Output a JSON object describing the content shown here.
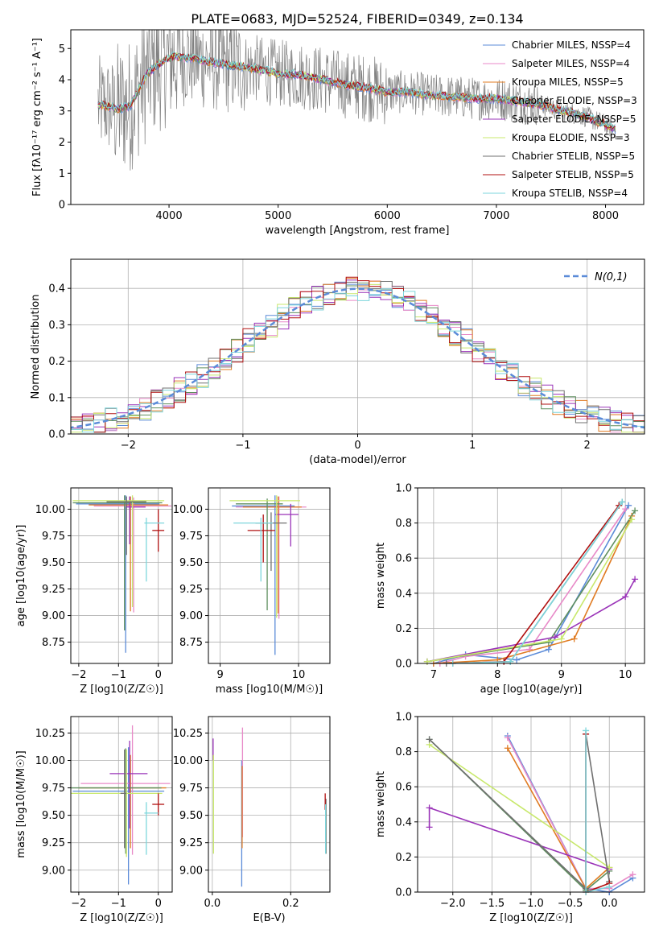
{
  "figure": {
    "title": "PLATE=0683, MJD=52524, FIBERID=0349, z=0.134"
  },
  "colors": {
    "series": [
      "#5b8bd8",
      "#e88ac8",
      "#e07b22",
      "#5f8f5f",
      "#9a33b8",
      "#c8e86c",
      "#707070",
      "#b01010",
      "#7dd6dc"
    ],
    "data_gray": "#808080",
    "normal_curve": "#5b8bd8",
    "grid": "#b0b0b0"
  },
  "chart_data": [
    {
      "id": "spectrum",
      "type": "line",
      "title": "PLATE=0683, MJD=52524, FIBERID=0349, z=0.134",
      "xlabel": "wavelength [Angstrom, rest frame]",
      "ylabel": "Flux [fλ10⁻¹⁷ erg cm⁻² s⁻¹ A⁻¹]",
      "xlim": [
        3100,
        8350
      ],
      "ylim": [
        0,
        5.6
      ],
      "xticks": [
        4000,
        5000,
        6000,
        7000,
        8000
      ],
      "yticks": [
        0,
        1,
        2,
        3,
        4,
        5
      ],
      "grid": false,
      "legend_position": "top-right",
      "legend": [
        "Chabrier MILES, NSSP=4",
        "Salpeter MILES, NSSP=4",
        "Kroupa MILES, NSSP=5",
        "Chabrier ELODIE, NSSP=3",
        "Salpeter ELODIE, NSSP=5",
        "Kroupa ELODIE, NSSP=3",
        "Chabrier STELIB, NSSP=5",
        "Salpeter STELIB, NSSP=5",
        "Kroupa STELIB, NSSP=4"
      ],
      "model_continuum": {
        "x": [
          3350,
          3450,
          3550,
          3650,
          3800,
          3950,
          4050,
          4200,
          4400,
          4600,
          4800,
          5000,
          5200,
          5400,
          5600,
          5800,
          6000,
          6200,
          6400,
          6600,
          6800,
          7000,
          7200,
          7400,
          7600,
          7800,
          8000,
          8100
        ],
        "y": [
          3.2,
          3.15,
          3.05,
          3.2,
          4.2,
          4.6,
          4.75,
          4.7,
          4.55,
          4.45,
          4.35,
          4.2,
          4.15,
          4.0,
          3.85,
          3.75,
          3.6,
          3.6,
          3.5,
          3.45,
          3.4,
          3.4,
          3.3,
          3.2,
          3.0,
          2.85,
          2.55,
          2.4
        ]
      }
    },
    {
      "id": "residuals",
      "type": "step",
      "xlabel": "(data-model)/error",
      "ylabel": "Normed distribution",
      "xlim": [
        -2.5,
        2.5
      ],
      "ylim": [
        0,
        0.48
      ],
      "xticks": [
        -2,
        -1,
        0,
        1,
        2
      ],
      "yticks": [
        0.0,
        0.1,
        0.2,
        0.3,
        0.4
      ],
      "grid": true,
      "legend_position": "top-right",
      "legend": [
        "N(0,1)"
      ],
      "bin_width": 0.1,
      "normal": {
        "mean": 0,
        "sigma": 1
      }
    },
    {
      "id": "age_vs_Z",
      "type": "errorbar",
      "xlabel": "Z [log10(Z/Z☉)]",
      "ylabel": "age  [log10(age/yr)]",
      "xlim": [
        -2.2,
        0.35
      ],
      "ylim": [
        8.55,
        10.2
      ],
      "xticks": [
        -2,
        -1,
        0
      ],
      "yticks": [
        8.75,
        9.0,
        9.25,
        9.5,
        9.75,
        10.0
      ],
      "grid": true,
      "points": [
        {
          "x": -0.82,
          "y": 10.05,
          "xerr": [
            1.25,
            0.85
          ],
          "yerr": [
            1.4,
            0.08
          ]
        },
        {
          "x": -0.62,
          "y": 10.03,
          "xerr": [
            1.0,
            0.95
          ],
          "yerr": [
            1.0,
            0.08
          ]
        },
        {
          "x": -0.7,
          "y": 10.04,
          "xerr": [
            1.05,
            0.95
          ],
          "yerr": [
            1.0,
            0.08
          ]
        },
        {
          "x": -0.85,
          "y": 10.06,
          "xerr": [
            1.3,
            0.95
          ],
          "yerr": [
            1.2,
            0.07
          ]
        },
        {
          "x": -0.72,
          "y": 10.02,
          "xerr": [
            0.1,
            0.4
          ],
          "yerr": [
            0.35,
            0.1
          ]
        },
        {
          "x": -0.65,
          "y": 10.08,
          "xerr": [
            1.5,
            0.8
          ],
          "yerr": [
            1.0,
            0.05
          ]
        },
        {
          "x": -0.8,
          "y": 10.07,
          "xerr": [
            0.5,
            0.5
          ],
          "yerr": [
            0.5,
            0.05
          ]
        },
        {
          "x": 0.0,
          "y": 9.8,
          "xerr": [
            0.15,
            0.15
          ],
          "yerr": [
            0.2,
            0.2
          ]
        },
        {
          "x": -0.3,
          "y": 9.87,
          "xerr": [
            0.05,
            0.45
          ],
          "yerr": [
            0.55,
            0.05
          ]
        }
      ]
    },
    {
      "id": "age_vs_mass",
      "type": "errorbar",
      "xlabel": "mass [log10(M/M☉)]",
      "ylabel": "",
      "xlim": [
        8.85,
        10.4
      ],
      "ylim": [
        8.55,
        10.2
      ],
      "xticks": [
        9,
        10
      ],
      "yticks": [
        8.75,
        9.0,
        9.25,
        9.5,
        9.75,
        10.0
      ],
      "grid": true,
      "points": [
        {
          "x": 9.7,
          "y": 10.03,
          "xerr": [
            0.55,
            0.25
          ],
          "yerr": [
            1.4,
            0.1
          ]
        },
        {
          "x": 9.75,
          "y": 10.02,
          "xerr": [
            0.55,
            0.35
          ],
          "yerr": [
            1.05,
            0.1
          ]
        },
        {
          "x": 9.74,
          "y": 10.02,
          "xerr": [
            0.45,
            0.3
          ],
          "yerr": [
            1.0,
            0.1
          ]
        },
        {
          "x": 9.6,
          "y": 10.05,
          "xerr": [
            0.4,
            0.2
          ],
          "yerr": [
            1.0,
            0.05
          ]
        },
        {
          "x": 9.9,
          "y": 9.95,
          "xerr": [
            0.2,
            0.1
          ],
          "yerr": [
            0.3,
            0.1
          ]
        },
        {
          "x": 9.72,
          "y": 10.08,
          "xerr": [
            0.6,
            0.3
          ],
          "yerr": [
            1.1,
            0.05
          ]
        },
        {
          "x": 9.65,
          "y": 9.87,
          "xerr": [
            0.2,
            0.2
          ],
          "yerr": [
            0.45,
            0.1
          ]
        },
        {
          "x": 9.55,
          "y": 9.8,
          "xerr": [
            0.2,
            0.15
          ],
          "yerr": [
            0.3,
            0.15
          ]
        },
        {
          "x": 9.52,
          "y": 9.87,
          "xerr": [
            0.35,
            0.15
          ],
          "yerr": [
            0.55,
            0.05
          ]
        }
      ]
    },
    {
      "id": "weight_vs_age",
      "type": "line",
      "xlabel": "age  [log10(age/yr)]",
      "ylabel": "mass weight",
      "xlim": [
        6.75,
        10.3
      ],
      "ylim": [
        0,
        1.0
      ],
      "xticks": [
        7,
        8,
        9,
        10
      ],
      "yticks": [
        0.0,
        0.2,
        0.4,
        0.6,
        0.8,
        1.0
      ],
      "grid": true,
      "series": [
        {
          "x": [
            7.0,
            7.5,
            8.3,
            8.8,
            10.05
          ],
          "y": [
            0.0,
            0.05,
            0.02,
            0.08,
            0.9
          ]
        },
        {
          "x": [
            7.1,
            7.5,
            8.5,
            10.0
          ],
          "y": [
            0.0,
            0.04,
            0.08,
            0.88
          ]
        },
        {
          "x": [
            7.0,
            8.0,
            9.2,
            10.1
          ],
          "y": [
            0.0,
            0.02,
            0.14,
            0.84
          ]
        },
        {
          "x": [
            6.9,
            8.8,
            10.15
          ],
          "y": [
            0.01,
            0.12,
            0.87
          ]
        },
        {
          "x": [
            6.9,
            8.9,
            10.0,
            10.15
          ],
          "y": [
            0.01,
            0.15,
            0.38,
            0.48
          ]
        },
        {
          "x": [
            6.9,
            9.0,
            10.1
          ],
          "y": [
            0.01,
            0.14,
            0.82
          ]
        },
        {
          "x": [
            7.2,
            8.2,
            9.95
          ],
          "y": [
            0.0,
            0.01,
            0.92
          ]
        },
        {
          "x": [
            7.3,
            8.1,
            9.9
          ],
          "y": [
            0.0,
            0.01,
            0.9
          ]
        },
        {
          "x": [
            7.3,
            8.2,
            9.95
          ],
          "y": [
            0.0,
            0.01,
            0.92
          ]
        }
      ]
    },
    {
      "id": "mass_vs_Z",
      "type": "errorbar",
      "xlabel": "Z [log10(Z/Z☉)]",
      "ylabel": "mass [log10(M/M☉)]",
      "xlim": [
        -2.2,
        0.35
      ],
      "ylim": [
        8.8,
        10.4
      ],
      "xticks": [
        -2,
        -1,
        0
      ],
      "yticks": [
        9.0,
        9.25,
        9.5,
        9.75,
        10.0,
        10.25
      ],
      "grid": true,
      "points": [
        {
          "x": -0.75,
          "y": 9.72,
          "xerr": [
            1.4,
            0.9
          ],
          "yerr": [
            0.85,
            0.4
          ]
        },
        {
          "x": -0.65,
          "y": 9.79,
          "xerr": [
            1.3,
            0.95
          ],
          "yerr": [
            0.65,
            0.53
          ]
        },
        {
          "x": -0.7,
          "y": 9.75,
          "xerr": [
            1.3,
            0.9
          ],
          "yerr": [
            0.55,
            0.3
          ]
        },
        {
          "x": -0.82,
          "y": 9.75,
          "xerr": [
            1.4,
            0.9
          ],
          "yerr": [
            0.6,
            0.36
          ]
        },
        {
          "x": -0.72,
          "y": 9.88,
          "xerr": [
            0.5,
            0.45
          ],
          "yerr": [
            0.5,
            0.3
          ]
        },
        {
          "x": -0.8,
          "y": 9.7,
          "xerr": [
            1.5,
            0.9
          ],
          "yerr": [
            0.58,
            0.4
          ]
        },
        {
          "x": -0.85,
          "y": 9.7,
          "xerr": [
            0.1,
            0.05
          ],
          "yerr": [
            0.5,
            0.4
          ]
        },
        {
          "x": 0.0,
          "y": 9.6,
          "xerr": [
            0.15,
            0.15
          ],
          "yerr": [
            0.1,
            0.1
          ]
        },
        {
          "x": -0.3,
          "y": 9.52,
          "xerr": [
            0.05,
            0.3
          ],
          "yerr": [
            0.38,
            0.1
          ]
        }
      ]
    },
    {
      "id": "mass_vs_EBV",
      "type": "errorbar",
      "xlabel": "E(B-V)",
      "ylabel": "",
      "xlim": [
        -0.01,
        0.3
      ],
      "ylim": [
        8.8,
        10.4
      ],
      "xticks": [
        0.0,
        0.2
      ],
      "yticks": [
        9.0,
        9.25,
        9.5,
        9.75,
        10.0,
        10.25
      ],
      "grid": true,
      "points": [
        {
          "x": 0.075,
          "y": 9.5,
          "xerr": [
            0,
            0
          ],
          "yerr": [
            0.65,
            0.5
          ]
        },
        {
          "x": 0.077,
          "y": 9.8,
          "xerr": [
            0,
            0
          ],
          "yerr": [
            0.5,
            0.5
          ]
        },
        {
          "x": 0.076,
          "y": 9.6,
          "xerr": [
            0,
            0
          ],
          "yerr": [
            0.4,
            0.35
          ]
        },
        {
          "x": 0.29,
          "y": 9.4,
          "xerr": [
            0,
            0
          ],
          "yerr": [
            0.25,
            0.2
          ]
        },
        {
          "x": 0.002,
          "y": 10.1,
          "xerr": [
            0,
            0
          ],
          "yerr": [
            0.1,
            0.1
          ]
        },
        {
          "x": 0.003,
          "y": 9.6,
          "xerr": [
            0,
            0
          ],
          "yerr": [
            0.45,
            0.45
          ]
        },
        {
          "x": 0.29,
          "y": 9.35,
          "xerr": [
            0,
            0
          ],
          "yerr": [
            0.2,
            0.3
          ]
        },
        {
          "x": 0.288,
          "y": 9.6,
          "xerr": [
            0,
            0
          ],
          "yerr": [
            0.05,
            0.1
          ]
        },
        {
          "x": 0.289,
          "y": 9.45,
          "xerr": [
            0,
            0
          ],
          "yerr": [
            0.3,
            0.15
          ]
        }
      ]
    },
    {
      "id": "weight_vs_Z",
      "type": "line",
      "xlabel": "Z [log10(Z/Z☉)]",
      "ylabel": "mass weight",
      "xlim": [
        -2.45,
        0.45
      ],
      "ylim": [
        0,
        1.0
      ],
      "xticks": [
        -2.0,
        -1.5,
        -1.0,
        -0.5,
        0.0
      ],
      "yticks": [
        0.0,
        0.2,
        0.4,
        0.6,
        0.8,
        1.0
      ],
      "grid": true,
      "series": [
        {
          "x": [
            -1.3,
            -0.3,
            0.0,
            0.3
          ],
          "y": [
            0.89,
            0.02,
            0.0,
            0.08
          ]
        },
        {
          "x": [
            -1.3,
            -0.3,
            0.0,
            0.3
          ],
          "y": [
            0.88,
            0.02,
            0.02,
            0.1
          ]
        },
        {
          "x": [
            -1.3,
            -0.3,
            0.0
          ],
          "y": [
            0.82,
            0.02,
            0.14
          ]
        },
        {
          "x": [
            -2.3,
            -0.3,
            0.0
          ],
          "y": [
            0.87,
            0.01,
            0.12
          ]
        },
        {
          "x": [
            -2.3,
            -2.3,
            0.0
          ],
          "y": [
            0.37,
            0.48,
            0.13
          ]
        },
        {
          "x": [
            -2.3,
            0.0
          ],
          "y": [
            0.84,
            0.14
          ]
        },
        {
          "x": [
            -2.3,
            -0.3,
            -0.3,
            0.0
          ],
          "y": [
            0.87,
            0.02,
            0.9,
            0.06
          ]
        },
        {
          "x": [
            -0.3,
            -0.3,
            0.0
          ],
          "y": [
            0.9,
            0.0,
            0.05
          ]
        },
        {
          "x": [
            -0.3,
            -0.3,
            0.0
          ],
          "y": [
            0.92,
            0.0,
            0.03
          ]
        }
      ]
    }
  ]
}
